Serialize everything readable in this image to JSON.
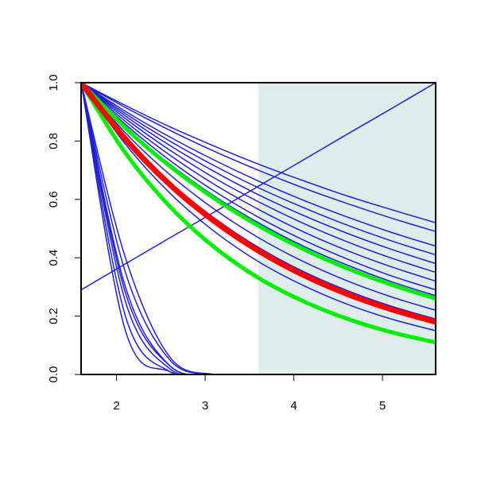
{
  "chart_data": {
    "type": "line",
    "x": [
      1.6,
      2.1,
      2.6,
      3.1,
      3.6,
      4.1,
      4.6,
      5.1,
      5.6
    ],
    "xlim": [
      1.6,
      5.6
    ],
    "xticks": [
      2,
      3,
      4,
      5
    ],
    "ylim": [
      0,
      1
    ],
    "yticks": [
      {
        "value": 0,
        "label": "0.0"
      },
      0.2,
      0.4,
      0.6,
      0.8,
      {
        "value": 1,
        "label": "1.0"
      }
    ],
    "shaded_xrange": [
      3.6,
      5.6
    ],
    "shade_color": "#dfecec",
    "series": [
      {
        "color": "#1f1fd6",
        "line_width": 1.5,
        "values": [
          1,
          0.922,
          0.849,
          0.783,
          0.721,
          0.665,
          0.612,
          0.565,
          0.52
        ]
      },
      {
        "color": "#1f1fd6",
        "line_width": 1.5,
        "values": [
          1,
          0.915,
          0.837,
          0.765,
          0.7,
          0.64,
          0.586,
          0.536,
          0.49
        ]
      },
      {
        "color": "#1f1fd6",
        "line_width": 1.5,
        "values": [
          1,
          0.902,
          0.814,
          0.735,
          0.663,
          0.598,
          0.54,
          0.487,
          0.44
        ]
      },
      {
        "color": "#1f1fd6",
        "line_width": 1.5,
        "values": [
          1,
          0.894,
          0.8,
          0.716,
          0.64,
          0.573,
          0.512,
          0.458,
          0.41
        ]
      },
      {
        "color": "#1f1fd6",
        "line_width": 1.5,
        "values": [
          1,
          0.886,
          0.785,
          0.696,
          0.616,
          0.546,
          0.484,
          0.429,
          0.38
        ]
      },
      {
        "color": "#1f1fd6",
        "line_width": 1.5,
        "values": [
          1,
          0.877,
          0.769,
          0.674,
          0.592,
          0.519,
          0.455,
          0.399,
          0.35
        ]
      },
      {
        "color": "#1f1fd6",
        "line_width": 1.5,
        "values": [
          1,
          0.867,
          0.752,
          0.652,
          0.566,
          0.49,
          0.425,
          0.369,
          0.32
        ]
      },
      {
        "color": "#1f1fd6",
        "line_width": 1.5,
        "values": [
          1,
          0.857,
          0.734,
          0.629,
          0.539,
          0.462,
          0.396,
          0.338,
          0.29
        ]
      },
      {
        "color": "#1f1fd6",
        "line_width": 1.5,
        "values": [
          1,
          0.849,
          0.721,
          0.612,
          0.52,
          0.441,
          0.375,
          0.318,
          0.27
        ]
      },
      {
        "color": "#1f1fd6",
        "line_width": 1.5,
        "values": [
          1,
          0.828,
          0.685,
          0.567,
          0.469,
          0.388,
          0.321,
          0.266,
          0.22
        ]
      },
      {
        "color": "#1f1fd6",
        "line_width": 1.5,
        "values": [
          1,
          0.813,
          0.66,
          0.537,
          0.436,
          0.354,
          0.288,
          0.234,
          0.19
        ]
      },
      {
        "color": "#1f1fd6",
        "line_width": 1.5,
        "values": [
          1,
          0.789,
          0.622,
          0.491,
          0.387,
          0.306,
          0.241,
          0.19,
          0.15
        ]
      },
      {
        "color": "#1f1fd6",
        "line_width": 1.5,
        "values": [
          0.29,
          0.379,
          0.468,
          0.556,
          0.645,
          0.734,
          0.823,
          0.911,
          1.0
        ]
      },
      {
        "color": "#1f1fd6",
        "line_width": 1.5,
        "values": [
          1,
          0.3,
          0.03,
          0,
          0,
          0,
          0,
          0,
          0
        ]
      },
      {
        "color": "#1f1fd6",
        "line_width": 1.5,
        "values": [
          1,
          0.25,
          0.02,
          0,
          0,
          0,
          0,
          0,
          0
        ]
      },
      {
        "color": "#1f1fd6",
        "line_width": 1.5,
        "values": [
          1,
          0.35,
          0.05,
          0,
          0,
          0,
          0,
          0,
          0
        ]
      },
      {
        "color": "#1f1fd6",
        "line_width": 1.5,
        "values": [
          1,
          0.2,
          0.01,
          0,
          0,
          0,
          0,
          0,
          0
        ]
      },
      {
        "color": "#1f1fd6",
        "line_width": 1.5,
        "values": [
          1,
          0.4,
          0.06,
          0,
          0,
          0,
          0,
          0,
          0
        ]
      },
      {
        "color": "#1f1fd6",
        "line_width": 1.5,
        "values": [
          1,
          0.28,
          0.03,
          0,
          0,
          0,
          0,
          0,
          0
        ]
      },
      {
        "color": "#1f1fd6",
        "line_width": 1.5,
        "values": [
          1,
          0.15,
          0.01,
          0,
          0,
          0,
          0,
          0,
          0
        ]
      },
      {
        "color": "#00ee00",
        "line_width": 5,
        "values": [
          1,
          0.845,
          0.714,
          0.604,
          0.51,
          0.431,
          0.364,
          0.308,
          0.26
        ]
      },
      {
        "color": "#00ee00",
        "line_width": 5,
        "values": [
          1,
          0.759,
          0.576,
          0.437,
          0.331,
          0.252,
          0.191,
          0.145,
          0.11
        ]
      },
      {
        "color": "#ff0000",
        "line_width": 7,
        "values": [
          1,
          0.807,
          0.651,
          0.526,
          0.424,
          0.342,
          0.276,
          0.223,
          0.18
        ]
      }
    ]
  }
}
